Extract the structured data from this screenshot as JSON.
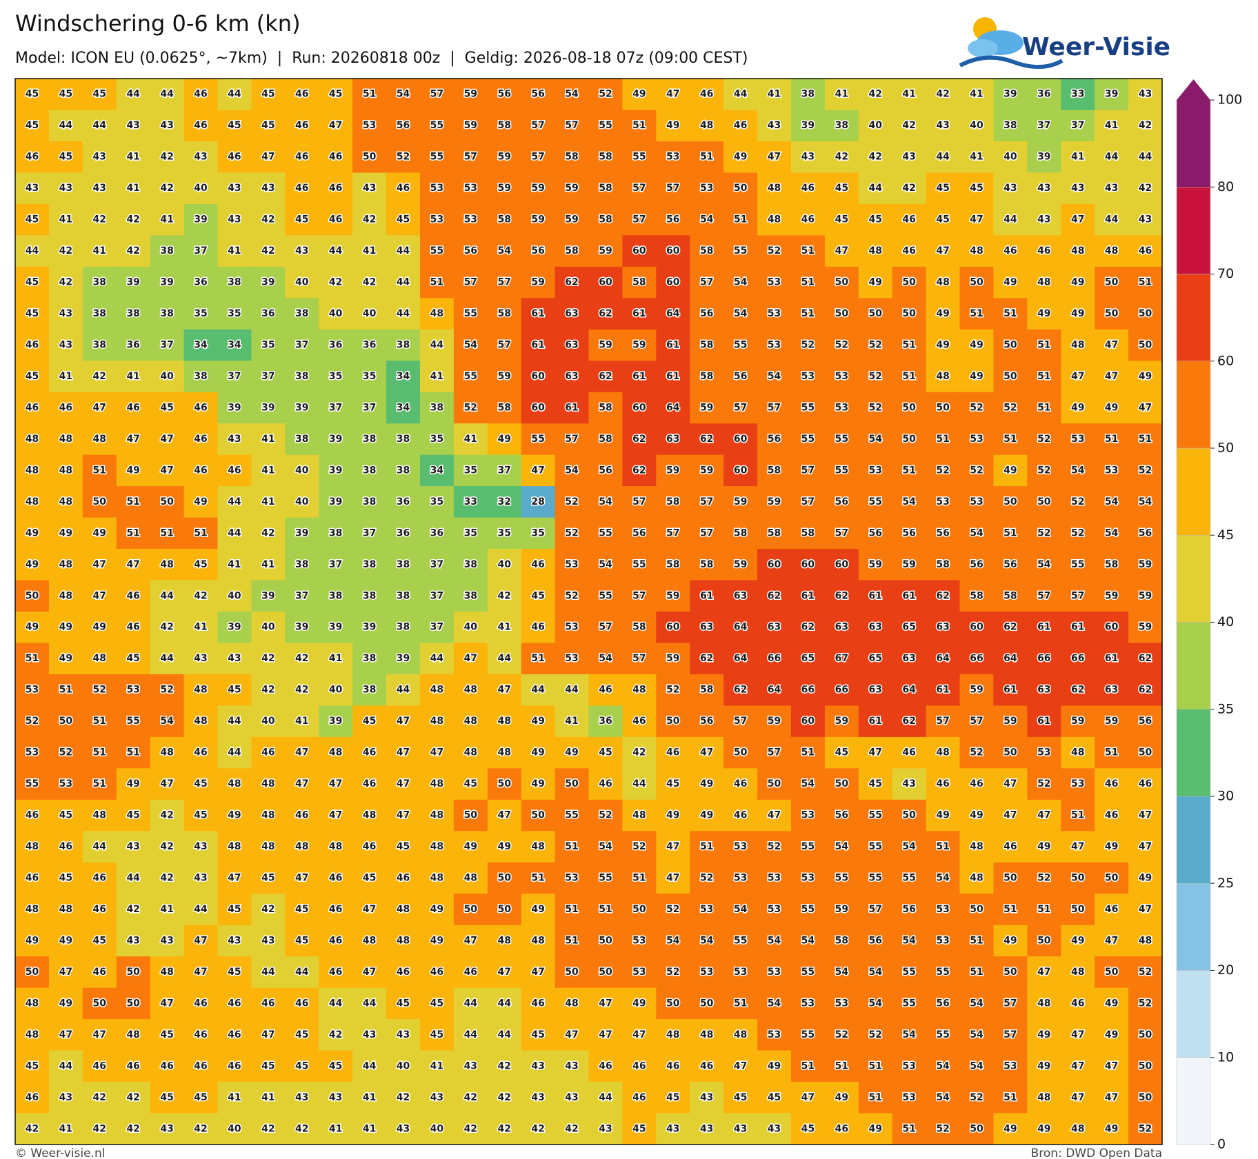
{
  "chart_data": {
    "type": "heatmap",
    "title": "Windschering 0-6 km (kn)",
    "subtitle": "Model: ICON EU (0.0625°, ~7km)  |  Run: 20260818 00z  |  Geldig: 2026-08-18 07z (09:00 CEST)",
    "values": [
      [
        45,
        45,
        45,
        44,
        44,
        46,
        44,
        45,
        46,
        45,
        51,
        54,
        57,
        59,
        56,
        56,
        54,
        52,
        49,
        47,
        46,
        44,
        41,
        38,
        41,
        42,
        41,
        42,
        41,
        39,
        36,
        33,
        39,
        43
      ],
      [
        45,
        44,
        44,
        43,
        43,
        46,
        45,
        45,
        46,
        47,
        53,
        56,
        55,
        59,
        58,
        57,
        57,
        55,
        51,
        49,
        48,
        46,
        43,
        39,
        38,
        40,
        42,
        43,
        40,
        38,
        37,
        37,
        41,
        42
      ],
      [
        46,
        45,
        43,
        41,
        42,
        43,
        46,
        47,
        46,
        46,
        50,
        52,
        55,
        57,
        59,
        57,
        58,
        58,
        55,
        53,
        51,
        49,
        47,
        43,
        42,
        42,
        43,
        44,
        41,
        40,
        39,
        41,
        44,
        44
      ],
      [
        43,
        43,
        43,
        41,
        42,
        40,
        43,
        43,
        46,
        46,
        43,
        46,
        53,
        53,
        59,
        59,
        59,
        58,
        57,
        57,
        53,
        50,
        48,
        46,
        45,
        44,
        42,
        45,
        45,
        43,
        43,
        43,
        43,
        42
      ],
      [
        45,
        41,
        42,
        42,
        41,
        39,
        43,
        42,
        45,
        46,
        42,
        45,
        53,
        53,
        58,
        59,
        59,
        58,
        57,
        56,
        54,
        51,
        48,
        46,
        45,
        45,
        46,
        45,
        47,
        44,
        43,
        47,
        44,
        43
      ],
      [
        44,
        42,
        41,
        42,
        38,
        37,
        41,
        42,
        43,
        44,
        41,
        44,
        55,
        56,
        54,
        56,
        58,
        59,
        60,
        60,
        58,
        55,
        52,
        51,
        47,
        48,
        46,
        47,
        48,
        46,
        46,
        48,
        48,
        46
      ],
      [
        45,
        42,
        38,
        39,
        39,
        36,
        38,
        39,
        40,
        42,
        42,
        44,
        51,
        57,
        57,
        59,
        62,
        60,
        58,
        60,
        57,
        54,
        53,
        51,
        50,
        49,
        50,
        48,
        50,
        49,
        48,
        49,
        50,
        51
      ],
      [
        45,
        43,
        38,
        38,
        38,
        35,
        35,
        36,
        38,
        40,
        40,
        44,
        48,
        55,
        58,
        61,
        63,
        62,
        61,
        64,
        56,
        54,
        53,
        51,
        50,
        50,
        50,
        49,
        51,
        51,
        49,
        49,
        50,
        50
      ],
      [
        46,
        43,
        38,
        36,
        37,
        34,
        34,
        35,
        37,
        36,
        36,
        38,
        44,
        54,
        57,
        61,
        63,
        59,
        59,
        61,
        58,
        55,
        53,
        52,
        52,
        52,
        51,
        49,
        49,
        50,
        51,
        48,
        47,
        50
      ],
      [
        45,
        41,
        42,
        41,
        40,
        38,
        37,
        37,
        38,
        35,
        35,
        34,
        41,
        55,
        59,
        60,
        63,
        62,
        61,
        61,
        58,
        56,
        54,
        53,
        53,
        52,
        51,
        48,
        49,
        50,
        51,
        47,
        47,
        49
      ],
      [
        46,
        46,
        47,
        46,
        45,
        46,
        39,
        39,
        39,
        37,
        37,
        34,
        38,
        52,
        58,
        60,
        61,
        58,
        60,
        64,
        59,
        57,
        57,
        55,
        53,
        52,
        50,
        50,
        52,
        52,
        51,
        49,
        49,
        47
      ],
      [
        48,
        48,
        48,
        47,
        47,
        46,
        43,
        41,
        38,
        39,
        38,
        38,
        35,
        41,
        49,
        55,
        57,
        58,
        62,
        63,
        62,
        60,
        56,
        55,
        55,
        54,
        50,
        51,
        53,
        51,
        52,
        53,
        51,
        51
      ],
      [
        48,
        48,
        51,
        49,
        47,
        46,
        46,
        41,
        40,
        39,
        38,
        38,
        34,
        35,
        37,
        47,
        54,
        56,
        62,
        59,
        59,
        60,
        58,
        57,
        55,
        53,
        51,
        52,
        52,
        49,
        52,
        54,
        53,
        52
      ],
      [
        48,
        48,
        50,
        51,
        50,
        49,
        44,
        41,
        40,
        39,
        38,
        36,
        35,
        33,
        32,
        28,
        52,
        54,
        57,
        58,
        57,
        59,
        59,
        57,
        56,
        55,
        54,
        53,
        53,
        50,
        50,
        52,
        54,
        54
      ],
      [
        49,
        49,
        49,
        51,
        51,
        51,
        44,
        42,
        39,
        38,
        37,
        36,
        36,
        35,
        35,
        35,
        52,
        55,
        56,
        57,
        57,
        58,
        58,
        58,
        57,
        56,
        56,
        56,
        54,
        51,
        52,
        52,
        54,
        56
      ],
      [
        49,
        48,
        47,
        47,
        48,
        45,
        41,
        41,
        38,
        37,
        38,
        38,
        37,
        38,
        40,
        46,
        53,
        54,
        55,
        58,
        58,
        59,
        60,
        60,
        60,
        59,
        59,
        58,
        56,
        56,
        54,
        55,
        58,
        59
      ],
      [
        50,
        48,
        47,
        46,
        44,
        42,
        40,
        39,
        37,
        38,
        38,
        38,
        37,
        38,
        42,
        45,
        52,
        55,
        57,
        59,
        61,
        63,
        62,
        61,
        62,
        61,
        61,
        62,
        58,
        58,
        57,
        57,
        59,
        59
      ],
      [
        49,
        49,
        49,
        46,
        42,
        41,
        39,
        40,
        39,
        39,
        39,
        38,
        37,
        40,
        41,
        46,
        53,
        57,
        58,
        60,
        63,
        64,
        63,
        62,
        63,
        63,
        65,
        63,
        60,
        62,
        61,
        61,
        60,
        59
      ],
      [
        51,
        49,
        48,
        45,
        44,
        43,
        43,
        42,
        42,
        41,
        38,
        39,
        44,
        47,
        44,
        51,
        53,
        54,
        57,
        59,
        62,
        64,
        66,
        65,
        67,
        65,
        63,
        64,
        66,
        64,
        66,
        66,
        61,
        62
      ],
      [
        53,
        51,
        52,
        53,
        52,
        48,
        45,
        42,
        42,
        40,
        38,
        44,
        48,
        48,
        47,
        44,
        44,
        46,
        48,
        52,
        58,
        62,
        64,
        66,
        66,
        63,
        64,
        61,
        59,
        61,
        63,
        62,
        63,
        62
      ],
      [
        52,
        50,
        51,
        55,
        54,
        48,
        44,
        40,
        41,
        39,
        45,
        47,
        48,
        48,
        48,
        49,
        41,
        36,
        46,
        50,
        56,
        57,
        59,
        60,
        59,
        61,
        62,
        57,
        57,
        59,
        61,
        59,
        59,
        56
      ],
      [
        53,
        52,
        51,
        51,
        48,
        46,
        44,
        46,
        47,
        48,
        46,
        47,
        47,
        48,
        48,
        49,
        49,
        45,
        42,
        46,
        47,
        50,
        57,
        51,
        45,
        47,
        46,
        48,
        52,
        50,
        53,
        48,
        51,
        50
      ],
      [
        55,
        53,
        51,
        49,
        47,
        45,
        48,
        48,
        47,
        47,
        46,
        47,
        48,
        45,
        50,
        49,
        50,
        46,
        44,
        45,
        49,
        46,
        50,
        54,
        50,
        45,
        43,
        46,
        46,
        47,
        52,
        53,
        46,
        46
      ],
      [
        46,
        45,
        48,
        45,
        42,
        45,
        49,
        48,
        46,
        47,
        48,
        47,
        48,
        50,
        47,
        50,
        55,
        52,
        48,
        49,
        49,
        46,
        47,
        53,
        56,
        55,
        50,
        49,
        49,
        47,
        47,
        51,
        46,
        47
      ],
      [
        48,
        46,
        44,
        43,
        42,
        43,
        48,
        48,
        48,
        48,
        46,
        45,
        48,
        49,
        49,
        48,
        51,
        54,
        52,
        47,
        51,
        53,
        52,
        55,
        54,
        55,
        54,
        51,
        48,
        46,
        49,
        47,
        49,
        47
      ],
      [
        46,
        45,
        46,
        44,
        42,
        43,
        47,
        45,
        47,
        46,
        45,
        46,
        48,
        48,
        50,
        51,
        53,
        55,
        51,
        47,
        52,
        53,
        53,
        53,
        55,
        55,
        55,
        54,
        48,
        50,
        52,
        50,
        50,
        49
      ],
      [
        48,
        48,
        46,
        42,
        41,
        44,
        45,
        42,
        45,
        46,
        47,
        48,
        49,
        50,
        50,
        49,
        51,
        51,
        50,
        52,
        53,
        54,
        53,
        55,
        59,
        57,
        56,
        53,
        50,
        51,
        51,
        50,
        46,
        47
      ],
      [
        49,
        49,
        45,
        43,
        43,
        47,
        43,
        43,
        45,
        46,
        48,
        48,
        49,
        47,
        48,
        48,
        51,
        50,
        53,
        54,
        54,
        55,
        54,
        54,
        58,
        56,
        54,
        53,
        51,
        49,
        50,
        49,
        47,
        48
      ],
      [
        50,
        47,
        46,
        50,
        48,
        47,
        45,
        44,
        44,
        46,
        47,
        46,
        46,
        46,
        47,
        47,
        50,
        50,
        53,
        52,
        53,
        53,
        53,
        55,
        54,
        54,
        55,
        55,
        51,
        50,
        47,
        48,
        50,
        52
      ],
      [
        48,
        49,
        50,
        50,
        47,
        46,
        46,
        46,
        46,
        44,
        44,
        45,
        45,
        44,
        44,
        46,
        48,
        47,
        49,
        50,
        50,
        51,
        54,
        53,
        53,
        54,
        55,
        56,
        54,
        57,
        48,
        46,
        49,
        52
      ],
      [
        48,
        47,
        47,
        48,
        45,
        46,
        46,
        47,
        45,
        42,
        43,
        43,
        45,
        44,
        44,
        45,
        47,
        47,
        47,
        48,
        48,
        48,
        53,
        55,
        52,
        52,
        54,
        55,
        54,
        57,
        49,
        47,
        49,
        50
      ],
      [
        45,
        44,
        46,
        46,
        46,
        46,
        46,
        45,
        45,
        45,
        44,
        40,
        41,
        43,
        42,
        43,
        43,
        46,
        46,
        46,
        46,
        47,
        49,
        51,
        51,
        51,
        53,
        54,
        54,
        53,
        49,
        47,
        47,
        50
      ],
      [
        46,
        43,
        42,
        42,
        45,
        45,
        41,
        41,
        43,
        43,
        41,
        42,
        43,
        42,
        42,
        43,
        43,
        44,
        46,
        45,
        43,
        45,
        45,
        47,
        49,
        51,
        53,
        54,
        52,
        51,
        48,
        47,
        47,
        50
      ],
      [
        42,
        41,
        42,
        42,
        43,
        42,
        40,
        42,
        42,
        41,
        41,
        43,
        40,
        42,
        42,
        42,
        42,
        43,
        45,
        43,
        43,
        43,
        43,
        45,
        46,
        49,
        51,
        52,
        50,
        49,
        49,
        48,
        49,
        52
      ]
    ],
    "colorbar": {
      "levels": [
        0,
        10,
        20,
        25,
        30,
        35,
        40,
        45,
        50,
        60,
        70,
        80,
        100
      ],
      "colors": [
        "#f2f6fa",
        "#c0e0f1",
        "#86c2e4",
        "#5aaacb",
        "#58bd6e",
        "#a8d04c",
        "#e2d033",
        "#fbb40a",
        "#f9790b",
        "#e83f14",
        "#c8143c",
        "#8a1a6a"
      ]
    }
  },
  "branding": {
    "logo": "Weer-Visie",
    "copyright": "© Weer-visie.nl",
    "source": "Bron: DWD Open Data"
  }
}
